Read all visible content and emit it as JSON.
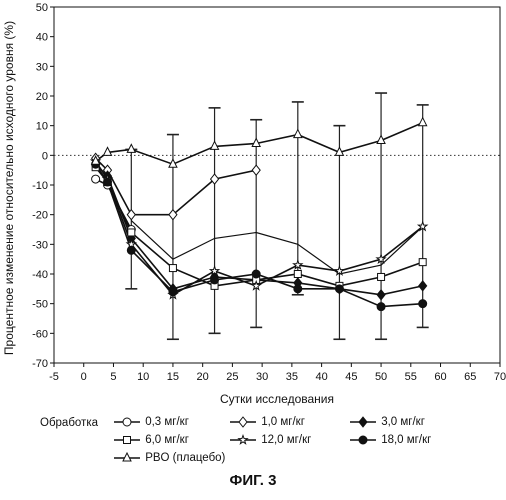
{
  "chart_data": {
    "type": "line",
    "title": "",
    "xlabel": "Сутки исследования",
    "ylabel": "Процентное изменение относительно исходного уровня (%)",
    "xlim": [
      -5,
      70
    ],
    "ylim": [
      -70,
      50
    ],
    "xticks": [
      -5,
      0,
      5,
      10,
      15,
      20,
      25,
      30,
      35,
      40,
      45,
      50,
      55,
      60,
      65,
      70
    ],
    "yticks": [
      -70,
      -60,
      -50,
      -40,
      -30,
      -20,
      -10,
      0,
      10,
      20,
      30,
      40,
      50
    ],
    "reference_line_y": 0,
    "grid": false,
    "legend_title": "Обработка",
    "legend_position": "bottom",
    "series": [
      {
        "name": "0,3 мг/кг",
        "marker": "open-circle",
        "x": [
          2,
          4,
          8
        ],
        "y": [
          -8,
          -10,
          -25
        ]
      },
      {
        "name": "1,0 мг/кг",
        "marker": "open-diamond",
        "x": [
          2,
          4,
          8,
          15,
          22,
          29
        ],
        "y": [
          -1,
          -5,
          -20,
          -20,
          -8,
          -5
        ]
      },
      {
        "name": "3,0 мг/кг",
        "marker": "filled-diamond",
        "x": [
          2,
          4,
          8,
          15,
          22,
          29,
          36,
          43,
          50,
          57
        ],
        "y": [
          -3,
          -7,
          -28,
          -45,
          -41,
          -42,
          -43,
          -45,
          -47,
          -44
        ]
      },
      {
        "name": "6,0 мг/кг",
        "marker": "open-square",
        "x": [
          2,
          4,
          8,
          15,
          22,
          29,
          36,
          43,
          50,
          57
        ],
        "y": [
          -4,
          -9,
          -26,
          -38,
          -44,
          -42,
          -40,
          -44,
          -41,
          -36
        ]
      },
      {
        "name": "12,0 мг/кг",
        "marker": "open-star",
        "x": [
          2,
          4,
          8,
          15,
          22,
          29,
          36,
          43,
          50,
          57
        ],
        "y": [
          -2,
          -8,
          -30,
          -47,
          -39,
          -44,
          -37,
          -39,
          -35,
          -24
        ]
      },
      {
        "name": "18,0 мг/кг",
        "marker": "filled-circle",
        "x": [
          2,
          4,
          8,
          15,
          22,
          29,
          36,
          43,
          50,
          57
        ],
        "y": [
          -3,
          -9,
          -32,
          -46,
          -42,
          -40,
          -45,
          -45,
          -51,
          -50
        ]
      },
      {
        "name": "PBO (плацебо)",
        "marker": "open-triangle",
        "x": [
          2,
          4,
          8,
          15,
          22,
          29,
          36,
          43,
          50,
          57
        ],
        "y": [
          -2,
          1,
          2,
          -3,
          3,
          4,
          7,
          1,
          5,
          11
        ]
      },
      {
        "name": "",
        "marker": "none",
        "x": [
          8,
          15,
          22,
          29,
          36,
          43,
          50,
          57
        ],
        "y": [
          -22,
          -35,
          -28,
          -26,
          -30,
          -40,
          -37,
          -24
        ]
      }
    ],
    "error_bars_at_x": [
      8,
      15,
      22,
      29,
      36,
      43,
      50,
      57
    ],
    "error_bars_range": [
      [
        -45,
        2
      ],
      [
        -62,
        7
      ],
      [
        -60,
        16
      ],
      [
        -58,
        12
      ],
      [
        -47,
        18
      ],
      [
        -62,
        10
      ],
      [
        -62,
        21
      ],
      [
        -58,
        17
      ]
    ]
  },
  "figure_label": "ФИГ. 3"
}
